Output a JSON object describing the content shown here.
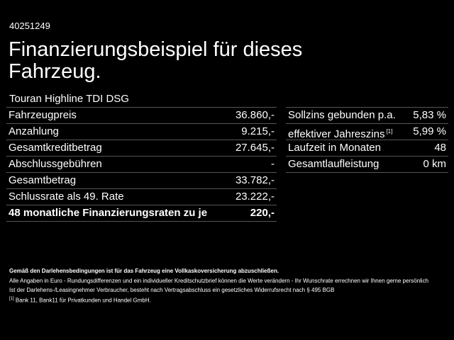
{
  "header": {
    "id": "40251249",
    "title_lines": [
      "Finanzierungsbeispiel für dieses",
      "Fahrzeug."
    ]
  },
  "vehicle": "Touran Highline TDI DSG",
  "left_table": {
    "rows": [
      {
        "label": "Fahrzeugpreis",
        "value": "36.860,-"
      },
      {
        "label": "Anzahlung",
        "value": "9.215,-"
      },
      {
        "label": "Gesamtkreditbetrag",
        "value": "27.645,-"
      },
      {
        "label": "Abschlussgebühren",
        "value": "-"
      },
      {
        "label": "Gesamtbetrag",
        "value": "33.782,-"
      },
      {
        "label": "Schlussrate als 49. Rate",
        "value": "23.222,-"
      },
      {
        "label": "48 monatliche Finanzierungsraten zu je",
        "value": "220,-"
      }
    ]
  },
  "right_table": {
    "rows": [
      {
        "label": "Sollzins gebunden p.a.",
        "value": "5,83 %"
      },
      {
        "label": "effektiver Jahreszins",
        "sup": "[1]",
        "value": "5,99 %"
      },
      {
        "label": "Laufzeit in Monaten",
        "value": "48"
      },
      {
        "label": "Gesamtlaufleistung",
        "value": "0 km"
      }
    ]
  },
  "footer": {
    "bold_note": "Gemäß den Darlehensbedingungen ist für das Fahrzeug eine Vollkaskoversicherung abzuschließen.",
    "note_lines": [
      "Alle Angaben in Euro - Rundungsdifferenzen und ein individueller Kreditschutzbrief können die Werte verändern - Ihr Wunschrate errechnen wir Ihnen gerne persönlich",
      "Ist der Darlehens-/Leasingnehmer Verbraucher, besteht nach Vertragsabschluss ein gesetzliches Widerrufsrecht nach § 495 BGB"
    ],
    "footnote": {
      "mark": "[1]",
      "text": "Bank 11, Bank11 für Privatkunden und Handel GmbH."
    }
  }
}
